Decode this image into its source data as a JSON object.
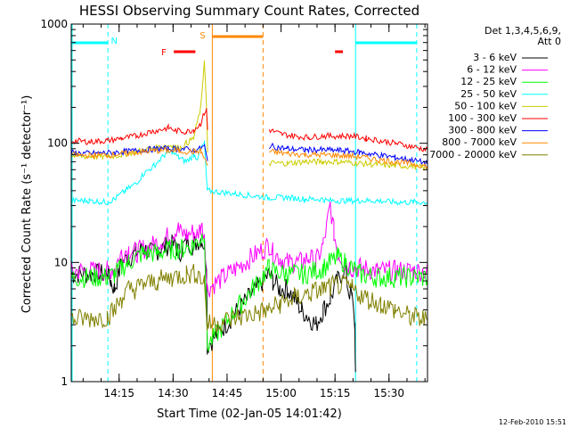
{
  "chart_data": {
    "type": "line",
    "title": "HESSI Observing Summary Count Rates, Corrected",
    "xlabel": "Start Time (02-Jan-05 14:01:42)",
    "ylabel": "Corrected Count Rate (s⁻¹ detector⁻¹)",
    "y_scale": "log",
    "ylim": [
      1,
      1000
    ],
    "xlim_minutes": [
      0,
      99
    ],
    "x_ticks": [
      {
        "label": "14:15",
        "minute": 13.3
      },
      {
        "label": "14:30",
        "minute": 28.3
      },
      {
        "label": "14:45",
        "minute": 43.3
      },
      {
        "label": "15:00",
        "minute": 58.3
      },
      {
        "label": "15:15",
        "minute": 73.3
      },
      {
        "label": "15:30",
        "minute": 88.3
      }
    ],
    "y_ticks": [
      {
        "label": "1",
        "value": 1
      },
      {
        "label": "10",
        "value": 10
      },
      {
        "label": "100",
        "value": 100
      },
      {
        "label": "1000",
        "value": 1000
      }
    ],
    "legend": {
      "position": "right",
      "header": [
        "Det 1,3,4,5,6,9,",
        "Att 0"
      ]
    },
    "series": [
      {
        "name": "3 - 6 keV",
        "color": "#000000",
        "points": [
          [
            0,
            8
          ],
          [
            10,
            8
          ],
          [
            11,
            7
          ],
          [
            12,
            6
          ],
          [
            14,
            10
          ],
          [
            16,
            11
          ],
          [
            18,
            12
          ],
          [
            20,
            13
          ],
          [
            22,
            12
          ],
          [
            25,
            13
          ],
          [
            27,
            14
          ],
          [
            29,
            14
          ],
          [
            30,
            12
          ],
          [
            32,
            15
          ],
          [
            34,
            14
          ],
          [
            36,
            16
          ],
          [
            37,
            14
          ],
          [
            37.6,
            10
          ],
          [
            37.8,
            2
          ],
          [
            55,
            8
          ],
          [
            56,
            7
          ],
          [
            58,
            6
          ],
          [
            60,
            6
          ],
          [
            62,
            5
          ],
          [
            64,
            4
          ],
          [
            66,
            3.5
          ],
          [
            68,
            3
          ],
          [
            70,
            4
          ],
          [
            72,
            5
          ],
          [
            74,
            7
          ],
          [
            76,
            9
          ],
          [
            77,
            6
          ],
          [
            78,
            5
          ],
          [
            78.8,
            3
          ],
          [
            79,
            1.1
          ]
        ]
      },
      {
        "name": "6 - 12 keV",
        "color": "#ff00ff",
        "points": [
          [
            0,
            8.5
          ],
          [
            10,
            8.5
          ],
          [
            12,
            9
          ],
          [
            14,
            12
          ],
          [
            16,
            13
          ],
          [
            18,
            12
          ],
          [
            20,
            13
          ],
          [
            23,
            14
          ],
          [
            26,
            16
          ],
          [
            28,
            17
          ],
          [
            29.5,
            20
          ],
          [
            30,
            18
          ],
          [
            32,
            17
          ],
          [
            34,
            18
          ],
          [
            35,
            17
          ],
          [
            36,
            20
          ],
          [
            37,
            18
          ],
          [
            37.8,
            6
          ],
          [
            55,
            14
          ],
          [
            56,
            12
          ],
          [
            58,
            11
          ],
          [
            60,
            10
          ],
          [
            62,
            10
          ],
          [
            64,
            10
          ],
          [
            66,
            11
          ],
          [
            68,
            10
          ],
          [
            70,
            14
          ],
          [
            71,
            20
          ],
          [
            72,
            30
          ],
          [
            73,
            18
          ],
          [
            74,
            12
          ],
          [
            76,
            10
          ],
          [
            78,
            9
          ],
          [
            80,
            9
          ],
          [
            85,
            8.5
          ],
          [
            90,
            8.5
          ],
          [
            95,
            8.5
          ],
          [
            99,
            8.5
          ]
        ]
      },
      {
        "name": "12 - 25 keV",
        "color": "#00ff00",
        "points": [
          [
            0,
            7.5
          ],
          [
            10,
            7.5
          ],
          [
            12,
            8
          ],
          [
            14,
            9
          ],
          [
            16,
            10
          ],
          [
            20,
            12
          ],
          [
            24,
            12
          ],
          [
            28,
            13
          ],
          [
            31,
            13
          ],
          [
            34,
            14
          ],
          [
            36,
            16
          ],
          [
            37,
            18
          ],
          [
            37.8,
            2
          ],
          [
            55,
            9
          ],
          [
            56,
            8.5
          ],
          [
            60,
            8
          ],
          [
            65,
            8
          ],
          [
            70,
            9
          ],
          [
            72,
            10
          ],
          [
            74,
            11
          ],
          [
            76,
            10
          ],
          [
            78,
            9
          ],
          [
            80,
            8
          ],
          [
            85,
            7.5
          ],
          [
            90,
            7.5
          ],
          [
            95,
            7.5
          ],
          [
            99,
            7.5
          ]
        ]
      },
      {
        "name": "25 - 50 keV",
        "color": "#00ffff",
        "points": [
          [
            0,
            33
          ],
          [
            5,
            33
          ],
          [
            10,
            32
          ],
          [
            12,
            34
          ],
          [
            15,
            40
          ],
          [
            18,
            46
          ],
          [
            20,
            55
          ],
          [
            23,
            65
          ],
          [
            26,
            80
          ],
          [
            28,
            85
          ],
          [
            30,
            75
          ],
          [
            32,
            70
          ],
          [
            34,
            80
          ],
          [
            35,
            75
          ],
          [
            36,
            90
          ],
          [
            37,
            100
          ],
          [
            37.8,
            40
          ],
          [
            55,
            35
          ],
          [
            60,
            35
          ],
          [
            65,
            34
          ],
          [
            70,
            34
          ],
          [
            71,
            33
          ],
          [
            75,
            33
          ],
          [
            80,
            33
          ],
          [
            85,
            33
          ],
          [
            90,
            32
          ],
          [
            95,
            32
          ],
          [
            99,
            32
          ]
        ]
      },
      {
        "name": "50 - 100 keV",
        "color": "#cccc00",
        "points": [
          [
            0,
            78
          ],
          [
            10,
            77
          ],
          [
            14,
            80
          ],
          [
            18,
            85
          ],
          [
            22,
            90
          ],
          [
            26,
            95
          ],
          [
            28,
            96
          ],
          [
            30,
            90
          ],
          [
            32,
            100
          ],
          [
            34,
            110
          ],
          [
            36,
            200
          ],
          [
            37,
            500
          ],
          [
            37.6,
            200
          ],
          [
            37.9,
            80
          ],
          [
            55,
            68
          ],
          [
            60,
            68
          ],
          [
            65,
            70
          ],
          [
            70,
            70
          ],
          [
            75,
            70
          ],
          [
            80,
            68
          ],
          [
            85,
            66
          ],
          [
            90,
            65
          ],
          [
            95,
            64
          ],
          [
            99,
            62
          ]
        ]
      },
      {
        "name": "100 - 300 keV",
        "color": "#ff0000",
        "points": [
          [
            0,
            105
          ],
          [
            5,
            103
          ],
          [
            10,
            105
          ],
          [
            14,
            110
          ],
          [
            18,
            115
          ],
          [
            22,
            125
          ],
          [
            25,
            130
          ],
          [
            27,
            135
          ],
          [
            29,
            128
          ],
          [
            32,
            125
          ],
          [
            34,
            130
          ],
          [
            36,
            145
          ],
          [
            37,
            180
          ],
          [
            37.6,
            190
          ],
          [
            37.9,
            130
          ],
          [
            55,
            130
          ],
          [
            58,
            120
          ],
          [
            62,
            115
          ],
          [
            66,
            112
          ],
          [
            70,
            115
          ],
          [
            74,
            115
          ],
          [
            78,
            115
          ],
          [
            82,
            110
          ],
          [
            86,
            105
          ],
          [
            90,
            100
          ],
          [
            94,
            95
          ],
          [
            99,
            88
          ]
        ]
      },
      {
        "name": "300 - 800 keV",
        "color": "#0000ff",
        "points": [
          [
            0,
            83
          ],
          [
            5,
            82
          ],
          [
            10,
            83
          ],
          [
            15,
            85
          ],
          [
            20,
            88
          ],
          [
            25,
            90
          ],
          [
            30,
            90
          ],
          [
            34,
            88
          ],
          [
            36,
            90
          ],
          [
            37,
            95
          ],
          [
            37.9,
            70
          ],
          [
            55,
            95
          ],
          [
            60,
            90
          ],
          [
            65,
            88
          ],
          [
            70,
            88
          ],
          [
            75,
            87
          ],
          [
            80,
            84
          ],
          [
            85,
            80
          ],
          [
            90,
            76
          ],
          [
            95,
            72
          ],
          [
            99,
            68
          ]
        ]
      },
      {
        "name": "800 - 7000 keV",
        "color": "#ff8800",
        "points": [
          [
            0,
            80
          ],
          [
            5,
            79
          ],
          [
            10,
            80
          ],
          [
            15,
            82
          ],
          [
            20,
            85
          ],
          [
            25,
            87
          ],
          [
            30,
            86
          ],
          [
            34,
            85
          ],
          [
            36,
            86
          ],
          [
            37.9,
            65
          ],
          [
            55,
            85
          ],
          [
            60,
            82
          ],
          [
            65,
            80
          ],
          [
            70,
            80
          ],
          [
            75,
            79
          ],
          [
            80,
            77
          ],
          [
            85,
            73
          ],
          [
            90,
            70
          ],
          [
            95,
            67
          ],
          [
            99,
            64
          ]
        ]
      },
      {
        "name": "7000 - 20000 keV",
        "color": "#808000",
        "points": [
          [
            0,
            3.3
          ],
          [
            10,
            3.5
          ],
          [
            12,
            4
          ],
          [
            14,
            5
          ],
          [
            16,
            6
          ],
          [
            18,
            6
          ],
          [
            20,
            6.5
          ],
          [
            24,
            7
          ],
          [
            28,
            7.5
          ],
          [
            32,
            8
          ],
          [
            35,
            8
          ],
          [
            37,
            7
          ],
          [
            37.8,
            3
          ],
          [
            55,
            4
          ],
          [
            58,
            4.5
          ],
          [
            62,
            5
          ],
          [
            66,
            5.5
          ],
          [
            70,
            6
          ],
          [
            74,
            6.5
          ],
          [
            78,
            6
          ],
          [
            82,
            5
          ],
          [
            86,
            4.5
          ],
          [
            90,
            4
          ],
          [
            94,
            3.5
          ],
          [
            99,
            3.3
          ]
        ]
      }
    ],
    "annotations": {
      "night": [
        {
          "label": "N",
          "start": -2,
          "end": 10.2,
          "label_at": 11
        },
        {
          "label": "",
          "start": 79,
          "end": 96,
          "label_at": null
        }
      ],
      "saa": {
        "label": "S",
        "start": 39.2,
        "end": 53.3
      },
      "flare_flags": [
        {
          "label": "F",
          "start": 28.5,
          "end": 34.5
        },
        {
          "label": "",
          "start": 73.3,
          "end": 75.5
        }
      ],
      "color_night": "#00ffff",
      "color_saa": "#ff8800",
      "color_flare": "#ff0000"
    },
    "footer_date": "12-Feb-2010 15:51"
  }
}
